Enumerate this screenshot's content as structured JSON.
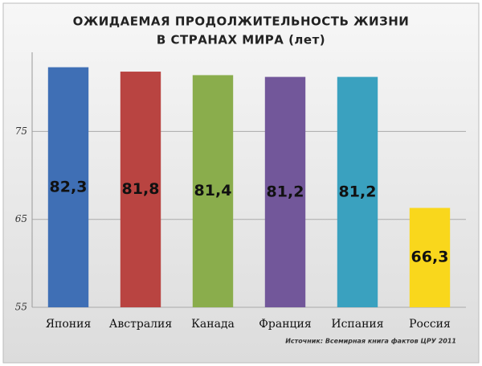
{
  "chart_data": {
    "type": "bar",
    "title": [
      "ОЖИДАЕМАЯ ПРОДОЛЖИТЕЛЬНОСТЬ ЖИЗНИ",
      "В СТРАНАХ МИРА (лет)"
    ],
    "categories": [
      "Япония",
      "Австралия",
      "Канада",
      "Франция",
      "Испания",
      "Россия"
    ],
    "values": [
      82.3,
      81.8,
      81.4,
      81.2,
      81.2,
      66.3
    ],
    "value_labels": [
      "82,3",
      "81,8",
      "81,4",
      "81,2",
      "81,2",
      "66,3"
    ],
    "colors": [
      "#3f6fb5",
      "#b94441",
      "#8aad4c",
      "#72579a",
      "#3aa1bf",
      "#f9d71c"
    ],
    "ylim": [
      55,
      84
    ],
    "yticks": [
      55,
      65,
      75
    ],
    "grid": true,
    "source": "Источник: Всемирная книга фактов ЦРУ 2011"
  }
}
